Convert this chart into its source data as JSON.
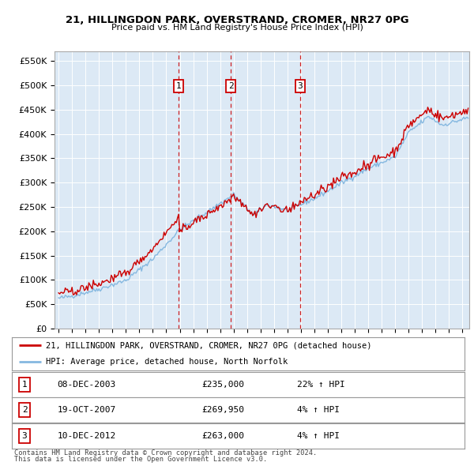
{
  "title": "21, HILLINGDON PARK, OVERSTRAND, CROMER, NR27 0PG",
  "subtitle": "Price paid vs. HM Land Registry's House Price Index (HPI)",
  "ylabel_ticks": [
    "£0",
    "£50K",
    "£100K",
    "£150K",
    "£200K",
    "£250K",
    "£300K",
    "£350K",
    "£400K",
    "£450K",
    "£500K",
    "£550K"
  ],
  "ytick_values": [
    0,
    50000,
    100000,
    150000,
    200000,
    250000,
    300000,
    350000,
    400000,
    450000,
    500000,
    550000
  ],
  "ylim": [
    0,
    570000
  ],
  "xlim_start": 1994.7,
  "xlim_end": 2025.5,
  "bg_color": "#dce9f5",
  "red_color": "#cc0000",
  "blue_color": "#85b8e0",
  "sale_points": [
    {
      "year_float": 2003.93,
      "price": 235000,
      "label": "1"
    },
    {
      "year_float": 2007.8,
      "price": 269950,
      "label": "2"
    },
    {
      "year_float": 2012.94,
      "price": 263000,
      "label": "3"
    }
  ],
  "legend_entries": [
    "21, HILLINGDON PARK, OVERSTRAND, CROMER, NR27 0PG (detached house)",
    "HPI: Average price, detached house, North Norfolk"
  ],
  "table_rows": [
    {
      "num": "1",
      "date": "08-DEC-2003",
      "price": "£235,000",
      "hpi": "22% ↑ HPI"
    },
    {
      "num": "2",
      "date": "19-OCT-2007",
      "price": "£269,950",
      "hpi": "4% ↑ HPI"
    },
    {
      "num": "3",
      "date": "10-DEC-2012",
      "price": "£263,000",
      "hpi": "4% ↑ HPI"
    }
  ],
  "footer": [
    "Contains HM Land Registry data © Crown copyright and database right 2024.",
    "This data is licensed under the Open Government Licence v3.0."
  ]
}
